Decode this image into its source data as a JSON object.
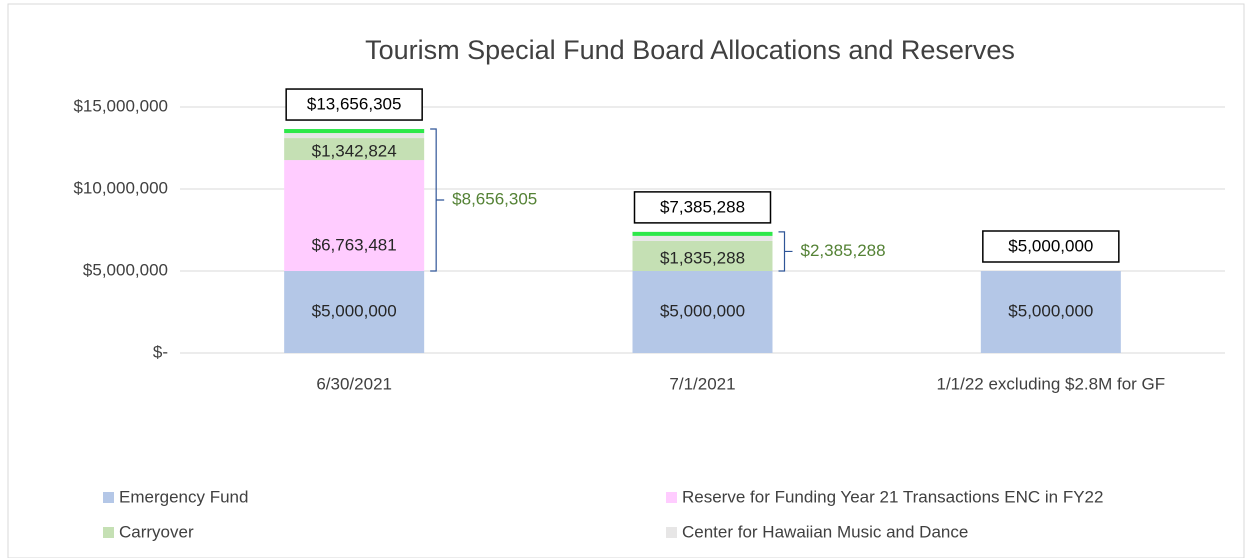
{
  "chart_data": {
    "type": "stacked_bar",
    "title": "Tourism Special Fund Board Allocations and Reserves",
    "categories": [
      "6/30/2021",
      "7/1/2021",
      "1/1/22 excluding $2.8M for GF"
    ],
    "series": [
      {
        "name": "Emergency Fund",
        "color": "#b4c7e7",
        "values": [
          5000000,
          5000000,
          5000000
        ],
        "value_labels": [
          "$5,000,000",
          "$5,000,000",
          "$5,000,000"
        ]
      },
      {
        "name": "Reserve for Funding Year 21 Transactions ENC in FY22",
        "color": "#ffccff",
        "values": [
          6763481,
          0,
          0
        ],
        "value_labels": [
          "$6,763,481",
          null,
          null
        ]
      },
      {
        "name": "Carryover",
        "color": "#c5e0b4",
        "values": [
          1342824,
          1835288,
          0
        ],
        "value_labels": [
          "$1,342,824",
          "$1,835,288",
          null
        ]
      },
      {
        "name": "Center for Hawaiian Music and Dance",
        "color": "#e7e6e6",
        "top_edge_color": "#2ee84a",
        "values": [
          550000,
          550000,
          0
        ]
      }
    ],
    "totals": {
      "values": [
        13656305,
        7385288,
        5000000
      ],
      "value_labels": [
        "$13,656,305",
        "$7,385,288",
        "$5,000,000"
      ]
    },
    "annotations": [
      {
        "category": 0,
        "from": 5000000,
        "value": 8656305,
        "text": "$8,656,305"
      },
      {
        "category": 1,
        "from": 5000000,
        "value": 2385288,
        "text": "$2,385,288"
      }
    ],
    "ylim": [
      0,
      15000000
    ],
    "yticks": [
      {
        "value": 0,
        "label": "$-"
      },
      {
        "value": 5000000,
        "label": "$5,000,000"
      },
      {
        "value": 10000000,
        "label": "$10,000,000"
      },
      {
        "value": 15000000,
        "label": "$15,000,000"
      }
    ],
    "grid": true,
    "legend": "bottom"
  }
}
